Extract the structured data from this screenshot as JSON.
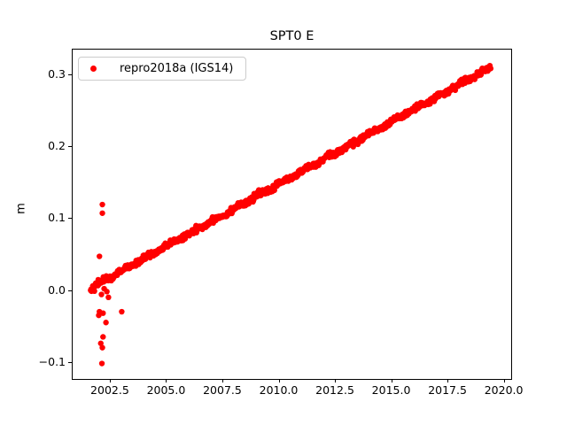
{
  "figure": {
    "title": "SPT0 E",
    "ylabel": "m",
    "background_color": "#ffffff",
    "axis_color": "#000000"
  },
  "chart_data": {
    "type": "scatter",
    "title": "SPT0 E",
    "xlabel": "",
    "ylabel": "m",
    "grid": false,
    "legend_position": "upper left",
    "legend_border_color": "#cccccc",
    "xlim": [
      2000.85,
      2020.33
    ],
    "ylim": [
      -0.1235,
      0.3345
    ],
    "xticks": [
      2002.5,
      2005.0,
      2007.5,
      2010.0,
      2012.5,
      2015.0,
      2017.5,
      2020.0
    ],
    "xtick_labels": [
      "2002.5",
      "2005.0",
      "2007.5",
      "2010.0",
      "2012.5",
      "2015.0",
      "2017.5",
      "2020.0"
    ],
    "yticks": [
      -0.1,
      0.0,
      0.1,
      0.2,
      0.3
    ],
    "ytick_labels": [
      "−0.1",
      "0.0",
      "0.1",
      "0.2",
      "0.3"
    ],
    "marker": {
      "shape": "circle",
      "radius_px": 3.2,
      "color": "#ff0000"
    },
    "series": [
      {
        "name": "repro2018a (IGS14)",
        "color": "#ff0000",
        "trend": {
          "x_start": 2001.65,
          "x_end": 2019.42,
          "y_start": 0.003,
          "y_end": 0.31,
          "points": 950,
          "jitter_sigma": 0.002,
          "annual_amplitude": 0.0015
        },
        "outliers": [
          [
            2002.17,
            0.119
          ],
          [
            2002.17,
            0.107
          ],
          [
            2002.04,
            0.047
          ],
          [
            2002.13,
            -0.006
          ],
          [
            2002.25,
            0.002
          ],
          [
            2002.37,
            -0.002
          ],
          [
            2002.44,
            -0.01
          ],
          [
            2002.01,
            -0.035
          ],
          [
            2002.04,
            -0.03
          ],
          [
            2002.2,
            -0.032
          ],
          [
            2003.03,
            -0.03
          ],
          [
            2002.33,
            -0.045
          ],
          [
            2002.2,
            -0.065
          ],
          [
            2002.1,
            -0.074
          ],
          [
            2002.17,
            -0.08
          ],
          [
            2002.15,
            -0.102
          ]
        ]
      }
    ]
  }
}
